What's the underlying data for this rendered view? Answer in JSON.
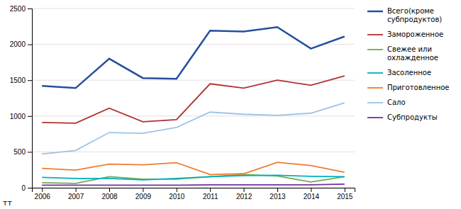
{
  "chart_data": {
    "type": "line",
    "x": [
      2006,
      2007,
      2008,
      2009,
      2010,
      2011,
      2012,
      2013,
      2014,
      2015
    ],
    "xlim": [
      2005.7,
      2015.3
    ],
    "xticks": [
      2006,
      2007,
      2008,
      2009,
      2010,
      2011,
      2012,
      2013,
      2014,
      2015
    ],
    "y_label": "тт",
    "series": [
      {
        "name": "Всего(кроме\nсубпродуктов)",
        "color": "#254f9e",
        "values": [
          1420,
          1390,
          1800,
          1530,
          1520,
          2190,
          2180,
          2240,
          1940,
          2110
        ]
      },
      {
        "name": "Замороженное",
        "color": "#b03030",
        "values": [
          910,
          900,
          1110,
          920,
          950,
          1450,
          1390,
          1500,
          1430,
          1560
        ]
      },
      {
        "name": "Свежее или\nохлажденное",
        "color": "#70ad47",
        "values": [
          70,
          60,
          155,
          120,
          120,
          155,
          185,
          165,
          80,
          155
        ]
      },
      {
        "name": "Засоленное",
        "color": "#00b0c0",
        "values": [
          145,
          130,
          130,
          110,
          130,
          155,
          170,
          175,
          160,
          155
        ]
      },
      {
        "name": "Приготовленное",
        "color": "#ed7d31",
        "values": [
          270,
          245,
          330,
          320,
          350,
          185,
          195,
          355,
          310,
          215
        ]
      },
      {
        "name": "Сало",
        "color": "#9dc3e6",
        "values": [
          470,
          520,
          770,
          760,
          840,
          1055,
          1025,
          1010,
          1040,
          1185
        ]
      },
      {
        "name": "Субпродукты",
        "color": "#7030a0",
        "values": [
          35,
          35,
          35,
          35,
          35,
          40,
          40,
          40,
          40,
          50
        ]
      }
    ],
    "ylim": [
      0,
      2500
    ],
    "yticks": [
      0,
      500,
      1000,
      1500,
      2000,
      2500
    ],
    "grid": true,
    "legend": "right"
  }
}
